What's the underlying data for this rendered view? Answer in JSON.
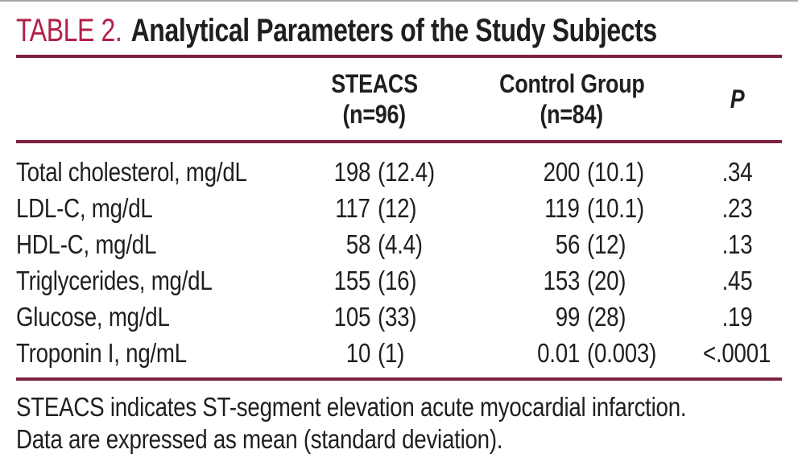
{
  "colors": {
    "accent": "#b22047",
    "rule": "#7d2240",
    "text": "#1f1f1f",
    "top_edge": "#a6a6a6"
  },
  "header": {
    "table_label": "TABLE 2.",
    "title": "Analytical Parameters of the Study Subjects"
  },
  "columns": {
    "steacs": {
      "line1": "STEACS",
      "line2": "(n=96)"
    },
    "control": {
      "line1": "Control Group",
      "line2": "(n=84)"
    },
    "p": {
      "label": "P"
    }
  },
  "rows": [
    {
      "label": "Total cholesterol, mg/dL",
      "steacs": "198",
      "steacs_sd": "(12.4)",
      "control": "200",
      "control_sd": "(10.1)",
      "p": ".34"
    },
    {
      "label": "LDL-C, mg/dL",
      "steacs": "117",
      "steacs_sd": "(12)",
      "control": "119",
      "control_sd": "(10.1)",
      "p": ".23"
    },
    {
      "label": "HDL-C, mg/dL",
      "steacs": "58",
      "steacs_sd": "(4.4)",
      "control": "56",
      "control_sd": "(12)",
      "p": ".13"
    },
    {
      "label": "Triglycerides, mg/dL",
      "steacs": "155",
      "steacs_sd": "(16)",
      "control": "153",
      "control_sd": "(20)",
      "p": ".45"
    },
    {
      "label": "Glucose, mg/dL",
      "steacs": "105",
      "steacs_sd": "(33)",
      "control": "99",
      "control_sd": "(28)",
      "p": ".19"
    },
    {
      "label": "Troponin I, ng/mL",
      "steacs": "10",
      "steacs_sd": "(1)",
      "control": "0.01",
      "control_sd": "(0.003)",
      "p": "<.0001"
    }
  ],
  "footnotes": [
    "STEACS indicates ST-segment elevation acute myocardial infarction.",
    "Data are expressed as mean (standard deviation)."
  ]
}
